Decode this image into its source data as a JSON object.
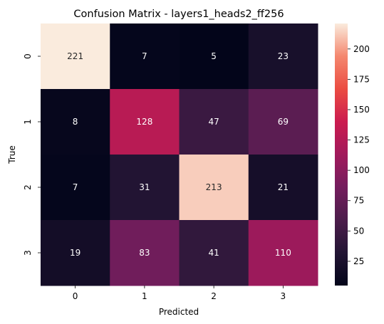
{
  "chart_data": {
    "type": "heatmap",
    "title": "Confusion Matrix - layers1_heads2_ff256",
    "xlabel": "Predicted",
    "ylabel": "True",
    "x_categories": [
      "0",
      "1",
      "2",
      "3"
    ],
    "y_categories": [
      "0",
      "1",
      "2",
      "3"
    ],
    "values": [
      [
        221,
        7,
        5,
        23
      ],
      [
        8,
        128,
        47,
        69
      ],
      [
        7,
        31,
        213,
        21
      ],
      [
        19,
        83,
        41,
        110
      ]
    ],
    "colormap": "rocket",
    "colorbar": {
      "range": [
        5,
        221
      ],
      "ticks": [
        "25",
        "50",
        "75",
        "100",
        "125",
        "150",
        "175",
        "200"
      ]
    },
    "grid": false
  }
}
